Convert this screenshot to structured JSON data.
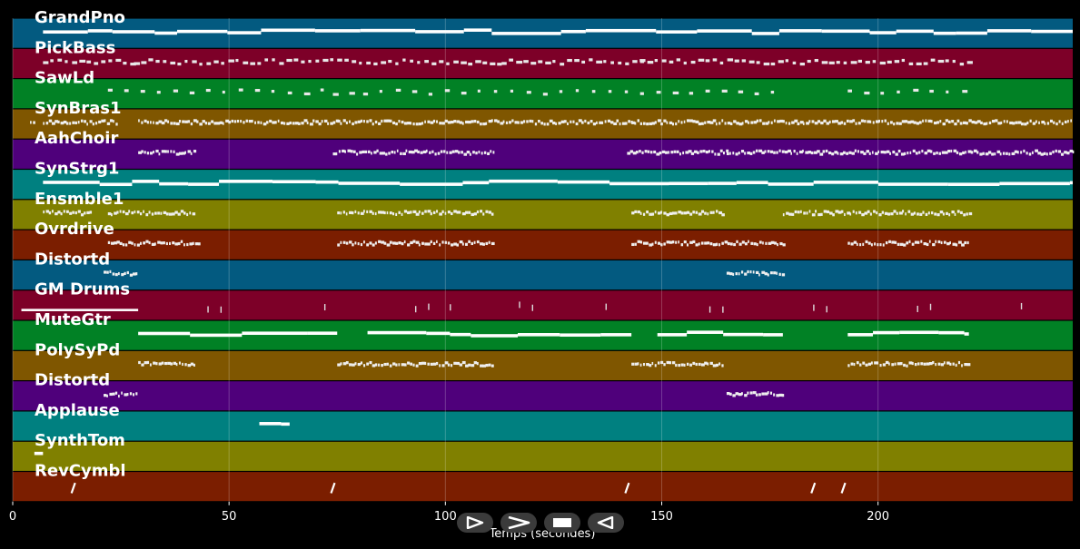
{
  "chart_data": {
    "type": "piano-roll",
    "xlabel": "Temps (secondes)",
    "xlim": [
      0,
      245
    ],
    "x_ticks": [
      0,
      50,
      100,
      150,
      200
    ],
    "tracks": [
      {
        "name": "GrandPno",
        "color": "#035a80",
        "segments": [
          [
            7,
            245
          ]
        ],
        "style": "sustained"
      },
      {
        "name": "PickBass",
        "color": "#7d0028",
        "segments": [
          [
            7,
            28
          ],
          [
            28,
            75
          ],
          [
            75,
            113
          ],
          [
            113,
            145
          ],
          [
            145,
            221
          ]
        ],
        "style": "dashed"
      },
      {
        "name": "SawLd",
        "color": "#018125",
        "segments": [
          [
            22,
            74
          ],
          [
            74,
            81
          ],
          [
            81,
            145
          ],
          [
            145,
            178
          ],
          [
            193,
            221
          ]
        ],
        "style": "sparse"
      },
      {
        "name": "SynBras1",
        "color": "#7f5600",
        "segments": [
          [
            4,
            5
          ],
          [
            7,
            24
          ],
          [
            29,
            75
          ],
          [
            75,
            143
          ],
          [
            143,
            245
          ]
        ],
        "style": "dense"
      },
      {
        "name": "AahChoir",
        "color": "#4f007b",
        "segments": [
          [
            29,
            42
          ],
          [
            74,
            111
          ],
          [
            142,
            165
          ],
          [
            165,
            245
          ]
        ],
        "style": "dense"
      },
      {
        "name": "SynStrg1",
        "color": "#008080",
        "segments": [
          [
            7,
            245
          ]
        ],
        "style": "sustained"
      },
      {
        "name": "Ensmble1",
        "color": "#808000",
        "segments": [
          [
            7,
            18
          ],
          [
            22,
            42
          ],
          [
            75,
            111
          ],
          [
            143,
            164
          ],
          [
            178,
            221
          ]
        ],
        "style": "dense"
      },
      {
        "name": "Ovrdrive",
        "color": "#7b1e00",
        "segments": [
          [
            22,
            43
          ],
          [
            75,
            111
          ],
          [
            143,
            178
          ],
          [
            193,
            221
          ]
        ],
        "style": "dense"
      },
      {
        "name": "Distortd",
        "color": "#035a80",
        "segments": [
          [
            21,
            29
          ],
          [
            165,
            178
          ]
        ],
        "style": "dense"
      },
      {
        "name": "GM Drums",
        "color": "#7d0028",
        "segments": [
          [
            2,
            29
          ]
        ],
        "hits": [
          45,
          48,
          72,
          93,
          96,
          101,
          117,
          120,
          137,
          161,
          164,
          185,
          188,
          209,
          212,
          233
        ],
        "style": "drums"
      },
      {
        "name": "MuteGtr",
        "color": "#018125",
        "segments": [
          [
            29,
            75
          ],
          [
            82,
            143
          ],
          [
            149,
            178
          ],
          [
            193,
            221
          ]
        ],
        "style": "sustained"
      },
      {
        "name": "PolySyPd",
        "color": "#7f5600",
        "segments": [
          [
            29,
            42
          ],
          [
            75,
            111
          ],
          [
            143,
            164
          ],
          [
            193,
            221
          ]
        ],
        "style": "dense"
      },
      {
        "name": "Distortd",
        "color": "#4f007b",
        "segments": [
          [
            21,
            29
          ],
          [
            165,
            178
          ]
        ],
        "style": "dense"
      },
      {
        "name": "Applause",
        "color": "#008080",
        "segments": [
          [
            57,
            64
          ]
        ],
        "style": "sustained"
      },
      {
        "name": "SynthTom",
        "color": "#808000",
        "segments": [
          [
            5,
            7
          ]
        ],
        "style": "sustained"
      },
      {
        "name": "RevCymbl",
        "color": "#7b1e00",
        "hits": [
          14,
          74,
          142,
          185,
          192
        ],
        "style": "cymbal"
      }
    ]
  },
  "playback": {
    "play": "play-icon",
    "fast_forward": "fast-forward-icon",
    "stop": "stop-icon",
    "rewind": "rewind-icon"
  }
}
